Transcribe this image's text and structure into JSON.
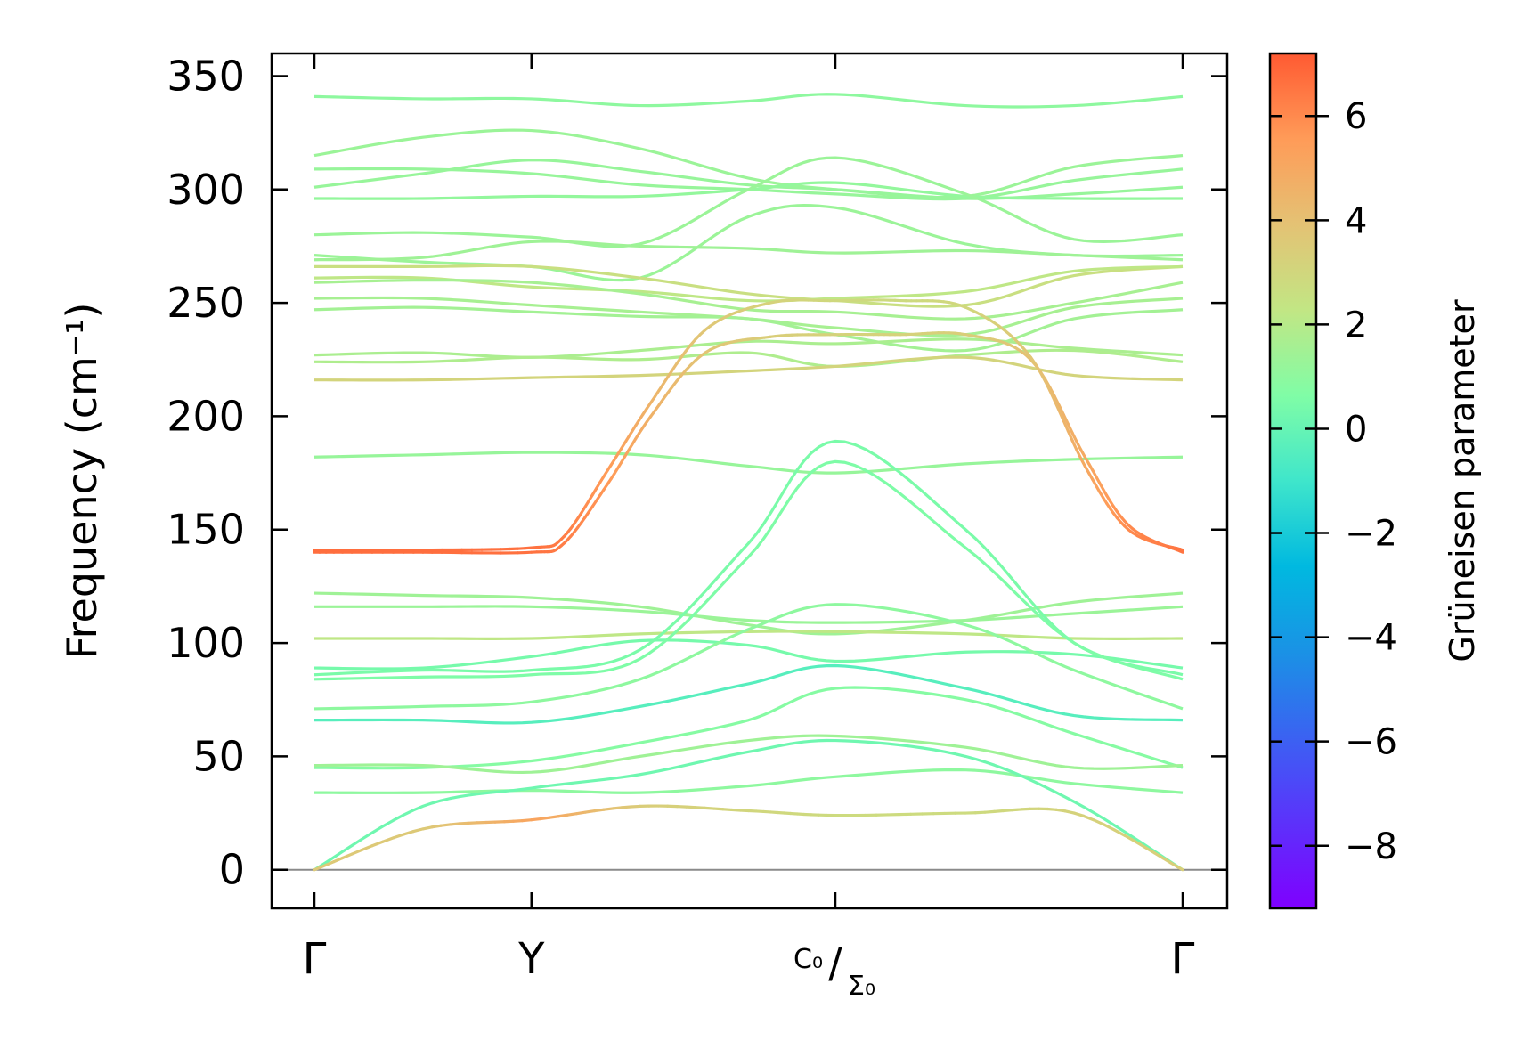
{
  "chart_data": {
    "type": "line",
    "title": "",
    "xlabel": "",
    "ylabel": "Frequency (cm⁻¹)",
    "ylim": [
      -17,
      360
    ],
    "yticks": [
      0,
      50,
      100,
      150,
      200,
      250,
      300,
      350
    ],
    "ytick_labels": [
      "0",
      "50",
      "100",
      "150",
      "200",
      "250",
      "300",
      "350"
    ],
    "path_ticks": [
      {
        "pos": 0.0,
        "label": "Γ"
      },
      {
        "pos": 1.0,
        "label": "Y"
      },
      {
        "pos": 2.4,
        "label": "C₀/Σ₀",
        "main": "C₀",
        "sub": "Σ₀"
      },
      {
        "pos": 4.0,
        "label": "Γ"
      }
    ],
    "colorbar": {
      "label": "Grüneisen parameter",
      "range": [
        -9.2,
        7.2
      ],
      "ticks": [
        6,
        4,
        2,
        0,
        -2,
        -4,
        -6,
        -8
      ],
      "tick_labels": [
        "6",
        "4",
        "2",
        "0",
        "−2",
        "−4",
        "−6",
        "−8"
      ]
    },
    "series": [
      {
        "name": "b01",
        "x": [
          0,
          0.5,
          1,
          1.5,
          2,
          2.4,
          3,
          3.5,
          4
        ],
        "y": [
          341,
          340,
          340,
          337,
          339,
          342,
          337,
          337,
          341
        ],
        "g": 1.0
      },
      {
        "name": "b02",
        "x": [
          0,
          0.5,
          1,
          1.5,
          2,
          2.4,
          3,
          3.5,
          4
        ],
        "y": [
          315,
          323,
          326,
          318,
          305,
          300,
          297,
          310,
          315
        ],
        "g": 1.3
      },
      {
        "name": "b03",
        "x": [
          0,
          0.5,
          1,
          1.5,
          2,
          2.4,
          3,
          3.5,
          4
        ],
        "y": [
          309,
          309,
          307,
          302,
          300,
          298,
          296,
          304,
          309
        ],
        "g": 1.2
      },
      {
        "name": "b04",
        "x": [
          0,
          0.5,
          1,
          1.5,
          2,
          2.4,
          3,
          3.5,
          4
        ],
        "y": [
          301,
          307,
          313,
          308,
          302,
          300,
          296,
          298,
          301
        ],
        "g": 1.2
      },
      {
        "name": "b05",
        "x": [
          0,
          0.5,
          1,
          1.5,
          2,
          2.4,
          3,
          3.5,
          4
        ],
        "y": [
          296,
          296,
          297,
          297,
          300,
          303,
          297,
          296,
          296
        ],
        "g": 1.1
      },
      {
        "name": "b06",
        "x": [
          0,
          0.5,
          1,
          1.5,
          2,
          2.4,
          3,
          3.5,
          4
        ],
        "y": [
          280,
          281,
          279,
          276,
          300,
          314,
          298,
          278,
          280
        ],
        "g": 1.3
      },
      {
        "name": "b07",
        "x": [
          0,
          0.5,
          1,
          1.5,
          2,
          2.4,
          3,
          3.5,
          4
        ],
        "y": [
          271,
          268,
          266,
          261,
          288,
          292,
          276,
          271,
          271
        ],
        "g": 1.3
      },
      {
        "name": "b08",
        "x": [
          0,
          0.5,
          1,
          1.5,
          2,
          2.4,
          3,
          3.5,
          4
        ],
        "y": [
          269,
          270,
          277,
          275,
          274,
          272,
          273,
          271,
          269
        ],
        "g": 1.4
      },
      {
        "name": "b09",
        "x": [
          0,
          0.5,
          1,
          1.5,
          2,
          2.4,
          3,
          3.5,
          4
        ],
        "y": [
          266,
          266,
          266,
          261,
          254,
          251,
          249,
          262,
          266
        ],
        "g": 2.6
      },
      {
        "name": "b10",
        "x": [
          0,
          0.5,
          1,
          1.5,
          2,
          2.4,
          3,
          3.5,
          4
        ],
        "y": [
          261,
          261,
          257,
          255,
          251,
          252,
          255,
          264,
          266
        ],
        "g": 2.2
      },
      {
        "name": "b11",
        "x": [
          0,
          0.5,
          1,
          1.5,
          2,
          2.4,
          3,
          3.5,
          4
        ],
        "y": [
          259,
          260,
          259,
          254,
          247,
          246,
          243,
          250,
          259
        ],
        "g": 1.6
      },
      {
        "name": "b12",
        "x": [
          0,
          0.5,
          1,
          1.5,
          2,
          2.4,
          3,
          3.5,
          4
        ],
        "y": [
          252,
          252,
          249,
          246,
          243,
          239,
          236,
          248,
          252
        ],
        "g": 1.6
      },
      {
        "name": "b13",
        "x": [
          0,
          0.5,
          1,
          1.5,
          2,
          2.4,
          3,
          3.5,
          4
        ],
        "y": [
          247,
          248,
          246,
          244,
          243,
          236,
          229,
          243,
          247
        ],
        "g": 1.5
      },
      {
        "name": "b14",
        "x": [
          0,
          0.5,
          1,
          1.5,
          2,
          2.4,
          3,
          3.5,
          4
        ],
        "y": [
          227,
          228,
          226,
          229,
          233,
          232,
          234,
          230,
          227
        ],
        "g": 1.7
      },
      {
        "name": "b15",
        "x": [
          0,
          0.5,
          1,
          1.5,
          2,
          2.4,
          3,
          3.5,
          4
        ],
        "y": [
          224,
          224,
          226,
          225,
          228,
          222,
          227,
          229,
          224
        ],
        "g": 1.8
      },
      {
        "name": "b16",
        "x": [
          0,
          0.5,
          1,
          1.5,
          2,
          2.4,
          3,
          3.5,
          4
        ],
        "y": [
          216,
          216,
          217,
          218,
          220,
          222,
          226,
          218,
          216
        ],
        "g": 3.1
      },
      {
        "name": "b17",
        "x": [
          0,
          0.5,
          1,
          1.5,
          2,
          2.4,
          3,
          3.5,
          4
        ],
        "y": [
          182,
          183,
          184,
          183,
          178,
          175,
          179,
          181,
          182
        ],
        "g": 1.2
      },
      {
        "name": "b18",
        "x": [
          0,
          0.5,
          1,
          1.15,
          1.35,
          1.55,
          1.8,
          2.1,
          2.4,
          2.7,
          3,
          3.3,
          3.55,
          3.75,
          4
        ],
        "y": [
          140,
          140,
          140,
          144,
          170,
          200,
          228,
          235,
          236,
          236,
          236,
          225,
          182,
          152,
          140
        ],
        "g": [
          6.7,
          6.7,
          6.6,
          6.3,
          5.6,
          4.6,
          3.8,
          3.4,
          3.2,
          3.2,
          3.4,
          4.0,
          5.0,
          6.0,
          6.6
        ]
      },
      {
        "name": "b19",
        "x": [
          0,
          0.5,
          1,
          1.15,
          1.35,
          1.55,
          1.8,
          2.1,
          2.4,
          2.7,
          3,
          3.3,
          3.55,
          3.75,
          4
        ],
        "y": [
          141,
          141,
          142,
          147,
          176,
          206,
          238,
          250,
          251,
          251,
          248,
          226,
          178,
          150,
          141
        ],
        "g": [
          6.7,
          6.7,
          6.6,
          6.3,
          5.5,
          4.5,
          3.7,
          3.2,
          2.9,
          2.8,
          3.0,
          3.8,
          5.0,
          6.0,
          6.6
        ]
      },
      {
        "name": "b20",
        "x": [
          0,
          0.5,
          1,
          1.5,
          2,
          2.4,
          3,
          3.5,
          4
        ],
        "y": [
          122,
          121,
          120,
          116,
          108,
          104,
          110,
          118,
          122
        ],
        "g": 1.4
      },
      {
        "name": "b21",
        "x": [
          0,
          0.5,
          1,
          1.5,
          2,
          2.4,
          3,
          3.5,
          4
        ],
        "y": [
          116,
          116,
          116,
          114,
          110,
          109,
          110,
          113,
          116
        ],
        "g": 1.3
      },
      {
        "name": "b22",
        "x": [
          0,
          0.5,
          1,
          1.5,
          2,
          2.4,
          3,
          3.5,
          4
        ],
        "y": [
          102,
          102,
          102,
          104,
          105,
          105,
          104,
          102,
          102
        ],
        "g": 2.2
      },
      {
        "name": "b23",
        "x": [
          0,
          0.5,
          1,
          1.5,
          2,
          2.4,
          3,
          3.5,
          4
        ],
        "y": [
          89,
          89,
          94,
          101,
          99,
          92,
          96,
          95,
          89
        ],
        "g": 0.4
      },
      {
        "name": "b24",
        "x": [
          0,
          0.5,
          1,
          1.5,
          2,
          2.4,
          3,
          3.5,
          4
        ],
        "y": [
          86,
          88,
          88,
          97,
          144,
          189,
          150,
          100,
          86
        ],
        "g": 0.5
      },
      {
        "name": "b25",
        "x": [
          0,
          0.5,
          1,
          1.5,
          2,
          2.4,
          3,
          3.5,
          4
        ],
        "y": [
          84,
          85,
          86,
          93,
          138,
          180,
          142,
          100,
          84
        ],
        "g": 0.6
      },
      {
        "name": "b26",
        "x": [
          0,
          0.5,
          1,
          1.5,
          2,
          2.4,
          3,
          3.5,
          4
        ],
        "y": [
          71,
          72,
          74,
          84,
          106,
          117,
          108,
          88,
          71
        ],
        "g": 1.0
      },
      {
        "name": "b27",
        "x": [
          0,
          0.5,
          1,
          1.5,
          2,
          2.4,
          3,
          3.5,
          4
        ],
        "y": [
          66,
          66,
          65,
          72,
          82,
          90,
          80,
          68,
          66
        ],
        "g": -0.4
      },
      {
        "name": "b28",
        "x": [
          0,
          0.5,
          1,
          1.5,
          2,
          2.4,
          3,
          3.5,
          4
        ],
        "y": [
          45,
          45,
          48,
          56,
          66,
          80,
          75,
          60,
          45
        ],
        "g": 0.8
      },
      {
        "name": "b29",
        "x": [
          0,
          0.5,
          1,
          1.5,
          2,
          2.4,
          3,
          3.5,
          4
        ],
        "y": [
          46,
          46,
          43,
          50,
          57,
          59,
          54,
          45,
          46
        ],
        "g": 1.4
      },
      {
        "name": "b30",
        "x": [
          0,
          0.5,
          1,
          1.5,
          2,
          2.4,
          3,
          3.5,
          4
        ],
        "y": [
          34,
          34,
          35,
          34,
          37,
          41,
          44,
          38,
          34
        ],
        "g": 1.0
      },
      {
        "name": "b31",
        "x": [
          0,
          0.5,
          1,
          1.5,
          2,
          2.4,
          3,
          3.5,
          4
        ],
        "y": [
          0,
          28,
          36,
          42,
          52,
          57,
          50,
          30,
          0
        ],
        "g": 0.2
      },
      {
        "name": "b32",
        "x": [
          0,
          0.5,
          1,
          1.5,
          2,
          2.4,
          3,
          3.5,
          4
        ],
        "y": [
          0,
          18,
          22,
          28,
          26,
          24,
          25,
          25,
          0
        ],
        "g": [
          3.6,
          3.6,
          5.2,
          3.4,
          3.0,
          2.8,
          2.8,
          3.2,
          3.4
        ]
      }
    ]
  }
}
